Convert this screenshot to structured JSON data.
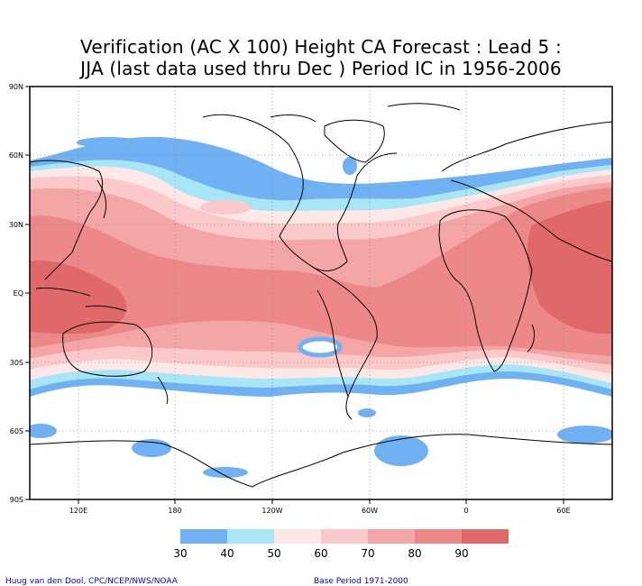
{
  "title": {
    "line1": "Verification (AC X 100) Height CA Forecast : Lead 5 :",
    "line2": "JJA (last data used thru Dec ) Period IC in 1956-2006"
  },
  "map": {
    "projection": "cylindrical-equidistant",
    "lat_labels": [
      "90N",
      "60N",
      "30N",
      "EQ",
      "30S",
      "60S",
      "90S"
    ],
    "lon_labels": [
      "120E",
      "180",
      "120W",
      "60W",
      "0",
      "60E"
    ],
    "grid": "dotted"
  },
  "legend": {
    "labels": [
      "30",
      "40",
      "50",
      "60",
      "70",
      "80",
      "90"
    ],
    "colors": [
      "#6fb1f3",
      "#a8e6f5",
      "#fde8e8",
      "#fbc9c9",
      "#f4a6a6",
      "#ec8888",
      "#e06868"
    ]
  },
  "footer": {
    "credit": "Huug van den Dool, CPC/NCEP/NWS/NOAA",
    "base_period": "Base Period 1971-2000"
  }
}
